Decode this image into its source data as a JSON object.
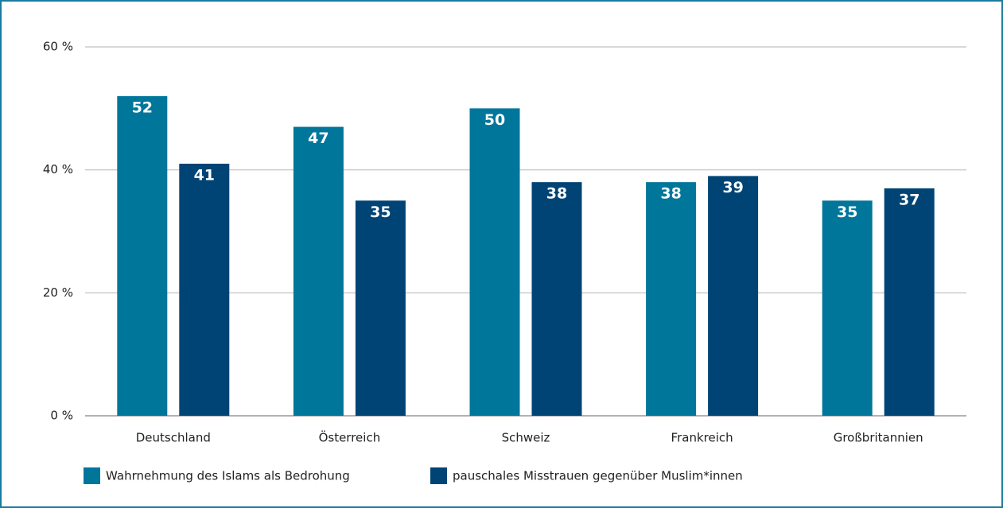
{
  "chart_data": {
    "type": "bar",
    "categories": [
      "Deutschland",
      "Österreich",
      "Schweiz",
      "Frankreich",
      "Großbritannien"
    ],
    "series": [
      {
        "name": "Wahrnehmung des Islams als Bedrohung",
        "color": "#00769b",
        "values": [
          52,
          47,
          50,
          38,
          35
        ]
      },
      {
        "name": "pauschales Misstrauen gegenüber Muslim*innen",
        "color": "#004475",
        "values": [
          41,
          35,
          38,
          39,
          37
        ]
      }
    ],
    "ylim": [
      0,
      60
    ],
    "yticks": [
      {
        "value": 0,
        "label": "0 %"
      },
      {
        "value": 20,
        "label": "20 %"
      },
      {
        "value": 40,
        "label": "40 %"
      },
      {
        "value": 60,
        "label": "60 %"
      }
    ],
    "grid": true,
    "legend": "bottom"
  }
}
